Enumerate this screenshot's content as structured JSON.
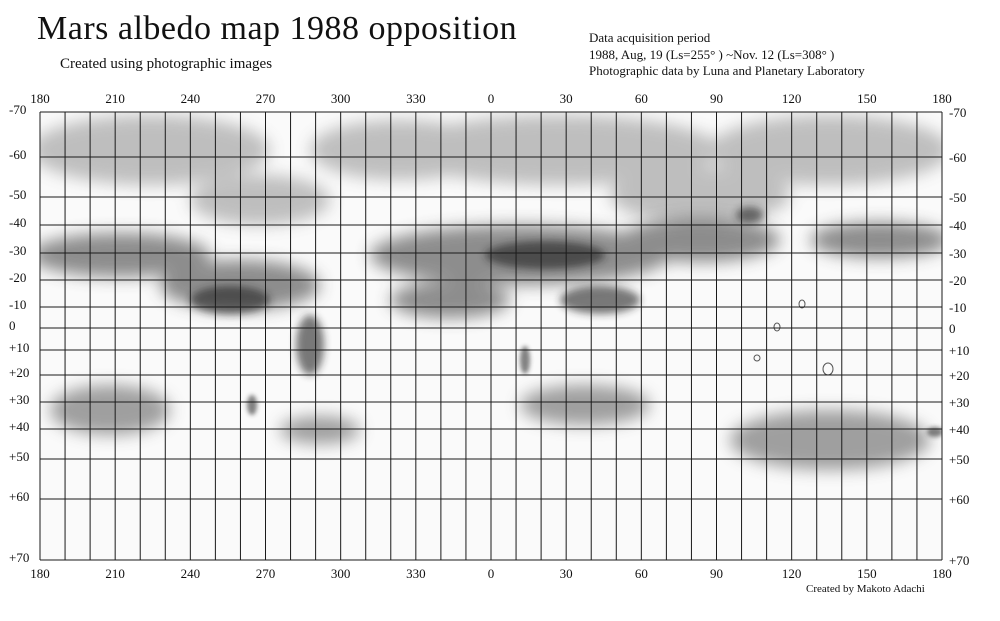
{
  "title": "Mars albedo map 1988   opposition",
  "subtitle": "Created using photographic images",
  "info": {
    "line1": "Data acquisition period",
    "line2": "1988, Aug, 19 (Ls=255°  )  ~Nov. 12 (Ls=308°  )",
    "line3": "Photographic data by Luna and Planetary Laboratory"
  },
  "credit": "Created by Makoto Adachi",
  "longitude_labels": [
    "180",
    "210",
    "240",
    "270",
    "300",
    "330",
    "0",
    "30",
    "60",
    "90",
    "120",
    "150",
    "180"
  ],
  "latitude_labels_left": [
    "-70",
    "-60",
    "-50",
    "-40",
    "-30",
    "-20",
    "-10",
    "0",
    "+10",
    "+20",
    "+30",
    "+40",
    "+50",
    "+60",
    "+70"
  ],
  "latitude_labels_right": [
    "-70",
    "-60",
    "-50",
    "-40",
    "-30",
    "-20",
    "-10",
    "0",
    "+10",
    "+20",
    "+30",
    "+40",
    "+50",
    "+60",
    "+70"
  ],
  "colors": {
    "ink": "#111111",
    "grid": "#1a1a1a",
    "shade_dark": "#333333",
    "paper": "#ffffff"
  }
}
